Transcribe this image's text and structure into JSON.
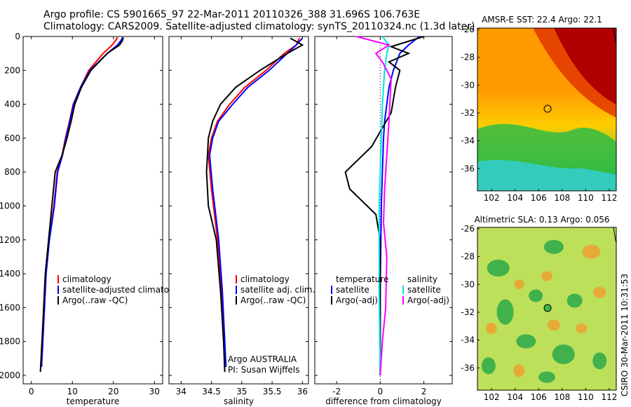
{
  "header": {
    "line1": "Argo profile: CS 5901665_97 22-Mar-2011 20110326_388 31.696S 106.763E",
    "line2": "Climatology: CARS2009. Satellite-adjusted climatology: synTS_20110324.nc (1.3d later)"
  },
  "stamp": "CSIRO 30-Mar-2011 10:31:53",
  "colors": {
    "climatology": "#ff0000",
    "satellite": "#0000ff",
    "argo": "#000000",
    "sat_salinity": "#00e5e5",
    "argo_salinity": "#ff00ff"
  },
  "chart_data": [
    {
      "id": "temperature",
      "type": "line",
      "xlabel": "temperature",
      "ylabel": "",
      "xlim": [
        -2,
        32
      ],
      "ylim": [
        2050,
        0
      ],
      "xticks": [
        "0",
        "10",
        "20",
        "30"
      ],
      "xtick_values": [
        0,
        10,
        20,
        30
      ],
      "yticks": [
        "0",
        "200",
        "400",
        "600",
        "800",
        "1000",
        "1200",
        "1400",
        "1600",
        "1800",
        "2000"
      ],
      "ytick_values": [
        0,
        200,
        400,
        600,
        800,
        1000,
        1200,
        1400,
        1600,
        1800,
        2000
      ],
      "legend": [
        "climatology",
        "satellite-adjusted climatology",
        "Argo(..raw -QC)"
      ],
      "series": [
        {
          "name": "climatology",
          "color": "#ff0000",
          "x": [
            21.0,
            20.5,
            19.7,
            17.5,
            14.0,
            12.0,
            10.2,
            9.3,
            8.3,
            7.5,
            6.3,
            5.5,
            4.3,
            3.5,
            2.9,
            2.4
          ],
          "y": [
            5,
            25,
            50,
            100,
            200,
            300,
            400,
            500,
            600,
            700,
            800,
            1000,
            1200,
            1400,
            1700,
            1950
          ]
        },
        {
          "name": "satellite-adjusted climatology",
          "color": "#0000ff",
          "x": [
            22.3,
            21.8,
            21.0,
            18.5,
            14.3,
            12.0,
            10.3,
            9.4,
            8.4,
            7.6,
            6.4,
            5.6,
            4.4,
            3.6,
            3.0,
            2.5
          ],
          "y": [
            5,
            25,
            50,
            100,
            200,
            300,
            400,
            500,
            600,
            700,
            800,
            1000,
            1200,
            1400,
            1700,
            1950
          ]
        },
        {
          "name": "Argo(..raw -QC)",
          "color": "#000000",
          "x": [
            22.4,
            22.2,
            21.5,
            18.5,
            14.5,
            12.2,
            10.6,
            9.7,
            8.7,
            7.5,
            5.8,
            5.0,
            4.2,
            3.4,
            2.8,
            2.2
          ],
          "y": [
            5,
            25,
            50,
            100,
            200,
            300,
            400,
            500,
            600,
            700,
            800,
            1000,
            1200,
            1400,
            1700,
            1980
          ]
        }
      ]
    },
    {
      "id": "salinity",
      "type": "line",
      "xlabel": "salinity",
      "xlim": [
        33.8,
        36.1
      ],
      "ylim": [
        2050,
        0
      ],
      "xticks": [
        "34",
        "34.5",
        "35",
        "35.5",
        "36"
      ],
      "xtick_values": [
        34,
        34.5,
        35,
        35.5,
        36
      ],
      "legend": [
        "climatology",
        "satellite adj. clim.",
        "Argo(..raw -QC)"
      ],
      "annotations": [
        "Argo AUSTRALIA",
        "PI: Susan Wijffels"
      ],
      "series": [
        {
          "name": "climatology",
          "color": "#ff0000",
          "x": [
            35.95,
            35.9,
            35.7,
            35.4,
            35.05,
            34.8,
            34.6,
            34.5,
            34.45,
            34.5,
            34.6,
            34.66,
            34.7,
            34.72
          ],
          "y": [
            10,
            50,
            100,
            200,
            300,
            400,
            500,
            600,
            700,
            900,
            1200,
            1500,
            1800,
            1950
          ]
        },
        {
          "name": "satellite adj. clim.",
          "color": "#0000ff",
          "x": [
            36.0,
            35.9,
            35.75,
            35.45,
            35.1,
            34.85,
            34.62,
            34.52,
            34.47,
            34.52,
            34.62,
            34.68,
            34.72,
            34.74
          ],
          "y": [
            10,
            50,
            100,
            200,
            300,
            400,
            500,
            600,
            700,
            900,
            1200,
            1500,
            1800,
            1950
          ]
        },
        {
          "name": "Argo(..raw -QC)",
          "color": "#000000",
          "x": [
            35.8,
            36.0,
            35.75,
            35.3,
            34.9,
            34.65,
            34.52,
            34.45,
            34.42,
            34.45,
            34.58,
            34.65,
            34.7,
            34.72
          ],
          "y": [
            10,
            50,
            100,
            200,
            300,
            400,
            500,
            600,
            800,
            1000,
            1200,
            1500,
            1800,
            1980
          ]
        }
      ]
    },
    {
      "id": "difference",
      "type": "line",
      "xlabel": "difference from climatology",
      "xlim": [
        -3,
        3.3
      ],
      "ylim": [
        2050,
        0
      ],
      "xticks": [
        "-2",
        "0",
        "2"
      ],
      "xtick_values": [
        -2,
        0,
        2
      ],
      "legend_temperature": [
        "temperature",
        "satellite",
        "Argo(-adj)"
      ],
      "legend_salinity": [
        "salinity",
        "satellite",
        "Argo(-adj)"
      ],
      "series": [
        {
          "name": "temperature satellite",
          "color": "#0000ff",
          "x": [
            1.8,
            1.3,
            0.9,
            0.6,
            0.4,
            0.3,
            0.2,
            0.15,
            0.1,
            0.05,
            0.0,
            0.0
          ],
          "y": [
            0,
            50,
            100,
            200,
            300,
            400,
            500,
            600,
            800,
            1000,
            1500,
            2000
          ]
        },
        {
          "name": "temperature Argo(-adj)",
          "color": "#000000",
          "x": [
            2.0,
            0.5,
            1.3,
            0.4,
            0.9,
            0.7,
            0.5,
            -0.4,
            -1.6,
            -1.4,
            -0.2,
            0.0,
            0.0,
            0.0
          ],
          "y": [
            0,
            60,
            100,
            150,
            200,
            300,
            450,
            650,
            800,
            900,
            1050,
            1200,
            1600,
            2000
          ]
        },
        {
          "name": "salinity satellite",
          "color": "#00e5e5",
          "x": [
            0.1,
            0.4,
            0.3,
            0.2,
            0.1,
            0.05,
            0.0,
            -0.05,
            -0.05,
            0.0
          ],
          "y": [
            0,
            50,
            100,
            200,
            400,
            600,
            800,
            1000,
            1500,
            2000
          ]
        },
        {
          "name": "salinity Argo(-adj)",
          "color": "#ff00ff",
          "x": [
            -1.1,
            0.4,
            -0.2,
            0.1,
            0.5,
            0.4,
            0.3,
            0.2,
            0.15,
            0.3,
            0.25,
            0.1,
            0.05,
            0.0
          ],
          "y": [
            0,
            50,
            100,
            150,
            250,
            500,
            700,
            900,
            1100,
            1300,
            1600,
            1800,
            1900,
            2000
          ]
        }
      ]
    },
    {
      "id": "sst_map",
      "type": "heatmap",
      "title": "AMSR-E SST: 22.4 Argo: 22.1",
      "xlim": [
        100.8,
        112.6
      ],
      "ylim": [
        -37.6,
        -25.9
      ],
      "xticks": [
        "102",
        "104",
        "106",
        "108",
        "110",
        "112"
      ],
      "xtick_values": [
        102,
        104,
        106,
        108,
        110,
        112
      ],
      "yticks": [
        "-26",
        "-28",
        "-30",
        "-32",
        "-34",
        "-36"
      ],
      "ytick_values": [
        -26,
        -28,
        -30,
        -32,
        -34,
        -36
      ],
      "marker": {
        "lon": 106.763,
        "lat": -31.696
      }
    },
    {
      "id": "sla_map",
      "type": "heatmap",
      "title": "Altimetric SLA: 0.13 Argo: 0.056",
      "xlim": [
        100.8,
        112.6
      ],
      "ylim": [
        -37.6,
        -25.9
      ],
      "xticks": [
        "102",
        "104",
        "106",
        "108",
        "110",
        "112"
      ],
      "xtick_values": [
        102,
        104,
        106,
        108,
        110,
        112
      ],
      "yticks": [
        "-26",
        "-28",
        "-30",
        "-32",
        "-34",
        "-36"
      ],
      "ytick_values": [
        -26,
        -28,
        -30,
        -32,
        -34,
        -36
      ],
      "marker": {
        "lon": 106.763,
        "lat": -31.696
      }
    }
  ]
}
